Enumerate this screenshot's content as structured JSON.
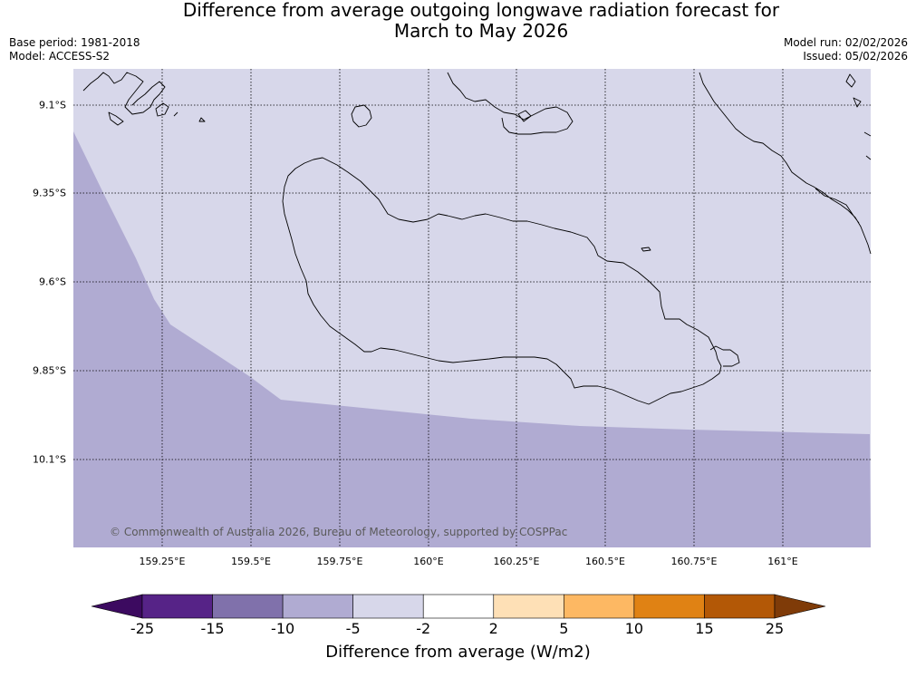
{
  "header": {
    "title_line1": "Difference from average outgoing longwave radiation forecast for",
    "title_line2": "March to May 2026",
    "base_period": "Base period: 1981-2018",
    "model": "Model: ACCESS-S2",
    "model_run": "Model run: 02/02/2026",
    "issued": "Issued: 05/02/2026"
  },
  "map": {
    "latitude_labels": [
      "9.1°S",
      "9.35°S",
      "9.6°S",
      "9.85°S",
      "10.1°S"
    ],
    "longitude_labels": [
      "159.25°E",
      "159.5°E",
      "159.75°E",
      "160°E",
      "160.25°E",
      "160.5°E",
      "160.75°E",
      "161°E"
    ],
    "copyright": "© Commonwealth of Australia 2026, Bureau of Meteorology, supported by COSPPac",
    "region_colors": {
      "light_zone": "#d7d7ea",
      "dark_zone": "#b0abd2"
    },
    "coastline_color": "#000000"
  },
  "legend": {
    "ticks": [
      "-25",
      "-15",
      "-10",
      "-5",
      "-2",
      "2",
      "5",
      "10",
      "15",
      "25"
    ],
    "colors": [
      "#3c0a60",
      "#562387",
      "#8071ab",
      "#b0abd2",
      "#d7d7ea",
      "#ffffff",
      "#fee0b6",
      "#fdb863",
      "#e08214",
      "#b35806",
      "#7f3b08"
    ],
    "label": "Difference from average (W/m2)"
  }
}
